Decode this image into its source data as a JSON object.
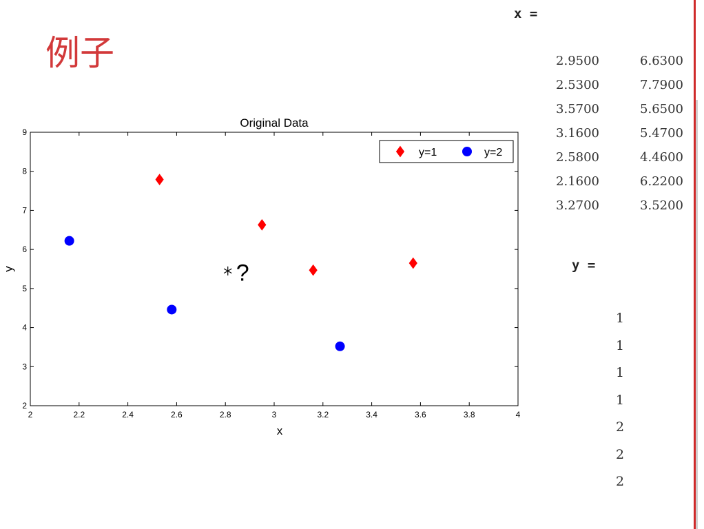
{
  "slide": {
    "title": "例子",
    "accent_color": "#d2393a"
  },
  "console": {
    "x_label": "x =",
    "y_label": "y =",
    "x_matrix": [
      [
        "2.9500",
        "6.6300"
      ],
      [
        "2.5300",
        "7.7900"
      ],
      [
        "3.5700",
        "5.6500"
      ],
      [
        "3.1600",
        "5.4700"
      ],
      [
        "2.5800",
        "4.4600"
      ],
      [
        "2.1600",
        "6.2200"
      ],
      [
        "3.2700",
        "3.5200"
      ]
    ],
    "y_vector": [
      "1",
      "1",
      "1",
      "1",
      "2",
      "2",
      "2"
    ]
  },
  "chart_data": {
    "type": "scatter",
    "title": "Original Data",
    "xlabel": "x",
    "ylabel": "y",
    "xlim": [
      2,
      4
    ],
    "ylim": [
      2,
      9
    ],
    "xticks": [
      2,
      2.2,
      2.4,
      2.6,
      2.8,
      3,
      3.2,
      3.4,
      3.6,
      3.8,
      4
    ],
    "xtick_labels": [
      "2",
      "2.2",
      "2.4",
      "2.6",
      "2.8",
      "3",
      "3.2",
      "3.4",
      "3.6",
      "3.8",
      "4"
    ],
    "yticks": [
      2,
      3,
      4,
      5,
      6,
      7,
      8,
      9
    ],
    "ytick_labels": [
      "2",
      "3",
      "4",
      "5",
      "6",
      "7",
      "8",
      "9"
    ],
    "grid": false,
    "legend_position": "top-right",
    "series": [
      {
        "name": "y=1",
        "marker": "diamond",
        "color": "#ff0000",
        "points": [
          [
            2.95,
            6.63
          ],
          [
            2.53,
            7.79
          ],
          [
            3.57,
            5.65
          ],
          [
            3.16,
            5.47
          ]
        ]
      },
      {
        "name": "y=2",
        "marker": "circle",
        "color": "#0000ff",
        "points": [
          [
            2.58,
            4.46
          ],
          [
            2.16,
            6.22
          ],
          [
            3.27,
            3.52
          ]
        ]
      }
    ],
    "query_point": {
      "x": 2.81,
      "y": 5.45,
      "marker": "asterisk",
      "label": "?"
    }
  }
}
